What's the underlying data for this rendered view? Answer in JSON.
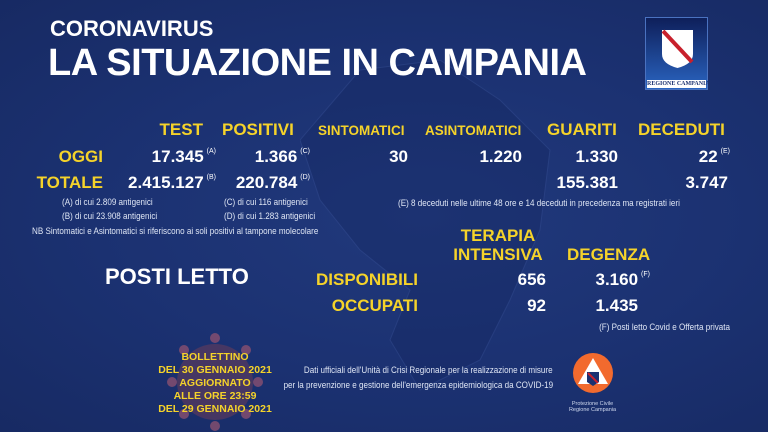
{
  "header": {
    "kicker": "CORONAVIRUS",
    "title": "LA SITUAZIONE IN CAMPANIA",
    "logo_text": "REGIONE CAMPANIA"
  },
  "columns": {
    "test": "TEST",
    "positivi": "POSITIVI",
    "sintomatici": "SINTOMATICI",
    "asintomatici": "ASINTOMATICI",
    "guariti": "GUARITI",
    "deceduti": "DECEDUTI"
  },
  "oggi": {
    "label": "OGGI",
    "test": "17.345",
    "test_note": "(A)",
    "positivi": "1.366",
    "positivi_note": "(C)",
    "sintomatici": "30",
    "asintomatici": "1.220",
    "guariti": "1.330",
    "deceduti": "22",
    "deceduti_note": "(E)"
  },
  "totale": {
    "label": "TOTALE",
    "test": "2.415.127",
    "test_note": "(B)",
    "positivi": "220.784",
    "positivi_note": "(D)",
    "guariti": "155.381",
    "deceduti": "3.747"
  },
  "notes": {
    "a": "(A) di cui 2.809 antigenici",
    "b": "(B) di cui 23.908 antigenici",
    "c": "(C) di cui 116 antigenici",
    "d": "(D) di cui 1.283 antigenici",
    "nb": "NB Sintomatici e Asintomatici si riferiscono ai soli positivi al tampone molecolare",
    "e": "(E) 8 deceduti nelle ultime 48 ore e 14 deceduti in precedenza ma registrati ieri",
    "f": "(F) Posti letto Covid e Offerta privata"
  },
  "posti_letto": {
    "title": "POSTI LETTO",
    "col_ti_1": "TERAPIA",
    "col_ti_2": "INTENSIVA",
    "col_deg": "DEGENZA",
    "disponibili": {
      "label": "DISPONIBILI",
      "ti": "656",
      "deg": "3.160",
      "deg_note": "(F)"
    },
    "occupati": {
      "label": "OCCUPATI",
      "ti": "92",
      "deg": "1.435"
    }
  },
  "bulletin": [
    "BOLLETTINO",
    "DEL 30 GENNAIO 2021",
    "AGGIORNATO",
    "ALLE ORE 23:59",
    "DEL 29 GENNAIO 2021"
  ],
  "footer": {
    "line1": "Dati ufficiali dell'Unità di Crisi Regionale per la realizzazione di misure",
    "line2": "per la prevenzione e gestione dell'emergenza epidemiologica da COVID-19",
    "pc_logo_1": "Protezione Civile",
    "pc_logo_2": "Regione Campania"
  },
  "colors": {
    "background": "#1b3171",
    "accent": "#f5d32a"
  }
}
